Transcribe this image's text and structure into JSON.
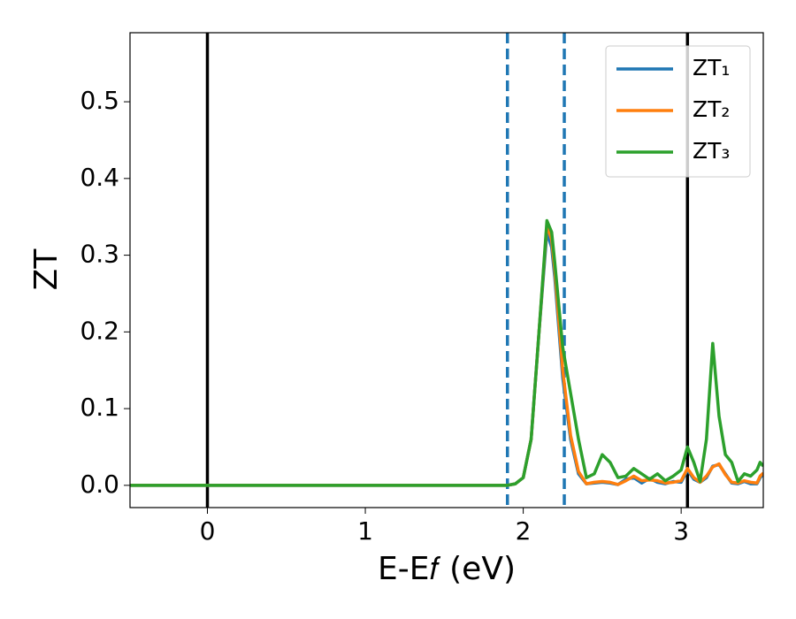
{
  "chart_data": {
    "type": "line",
    "xlabel": "E-E𝑓 (eV)",
    "ylabel": "ZT",
    "x": [
      -0.49,
      1.9,
      1.95,
      2.0,
      2.05,
      2.1,
      2.15,
      2.18,
      2.2,
      2.25,
      2.3,
      2.35,
      2.4,
      2.45,
      2.5,
      2.55,
      2.6,
      2.65,
      2.7,
      2.75,
      2.8,
      2.85,
      2.9,
      2.95,
      3.0,
      3.04,
      3.08,
      3.12,
      3.16,
      3.2,
      3.24,
      3.28,
      3.32,
      3.36,
      3.4,
      3.44,
      3.48,
      3.5,
      3.52
    ],
    "series": [
      {
        "name": "ZT₁",
        "color": "#1f77b4",
        "values": [
          0,
          0,
          0.002,
          0.01,
          0.06,
          0.2,
          0.33,
          0.31,
          0.27,
          0.14,
          0.06,
          0.015,
          0.002,
          0.003,
          0.004,
          0.003,
          0.001,
          0.008,
          0.01,
          0.003,
          0.009,
          0.004,
          0.002,
          0.005,
          0.004,
          0.02,
          0.008,
          0.004,
          0.01,
          0.025,
          0.027,
          0.015,
          0.003,
          0.002,
          0.005,
          0.002,
          0.002,
          0.01,
          0.015
        ]
      },
      {
        "name": "ZT₂",
        "color": "#ff7f0e",
        "values": [
          0,
          0,
          0.002,
          0.01,
          0.06,
          0.2,
          0.34,
          0.32,
          0.28,
          0.15,
          0.065,
          0.018,
          0.002,
          0.004,
          0.005,
          0.004,
          0.001,
          0.006,
          0.012,
          0.006,
          0.007,
          0.006,
          0.003,
          0.004,
          0.006,
          0.022,
          0.01,
          0.004,
          0.012,
          0.024,
          0.028,
          0.014,
          0.004,
          0.003,
          0.006,
          0.004,
          0.003,
          0.012,
          0.016
        ]
      },
      {
        "name": "ZT₃",
        "color": "#2ca02c",
        "values": [
          0,
          0,
          0.002,
          0.01,
          0.06,
          0.2,
          0.345,
          0.33,
          0.29,
          0.18,
          0.12,
          0.06,
          0.01,
          0.015,
          0.04,
          0.03,
          0.01,
          0.012,
          0.022,
          0.015,
          0.008,
          0.015,
          0.006,
          0.012,
          0.02,
          0.05,
          0.03,
          0.005,
          0.06,
          0.185,
          0.09,
          0.04,
          0.03,
          0.005,
          0.015,
          0.012,
          0.02,
          0.03,
          0.025
        ]
      }
    ],
    "vlines": [
      {
        "x": 0,
        "color": "#000000",
        "style": "solid"
      },
      {
        "x": 3.04,
        "color": "#000000",
        "style": "solid"
      },
      {
        "x": 1.9,
        "color": "#1f77b4",
        "style": "dashed"
      },
      {
        "x": 2.26,
        "color": "#1f77b4",
        "style": "dashed"
      }
    ],
    "xlim": [
      -0.49,
      3.52
    ],
    "ylim": [
      -0.029,
      0.59
    ],
    "xticks": [
      0,
      1,
      2,
      3
    ],
    "yticks": [
      {
        "value": 0,
        "label": "0.0"
      },
      0.1,
      0.2,
      0.3,
      0.4,
      0.5
    ],
    "legend": "upper right",
    "grid": false
  }
}
